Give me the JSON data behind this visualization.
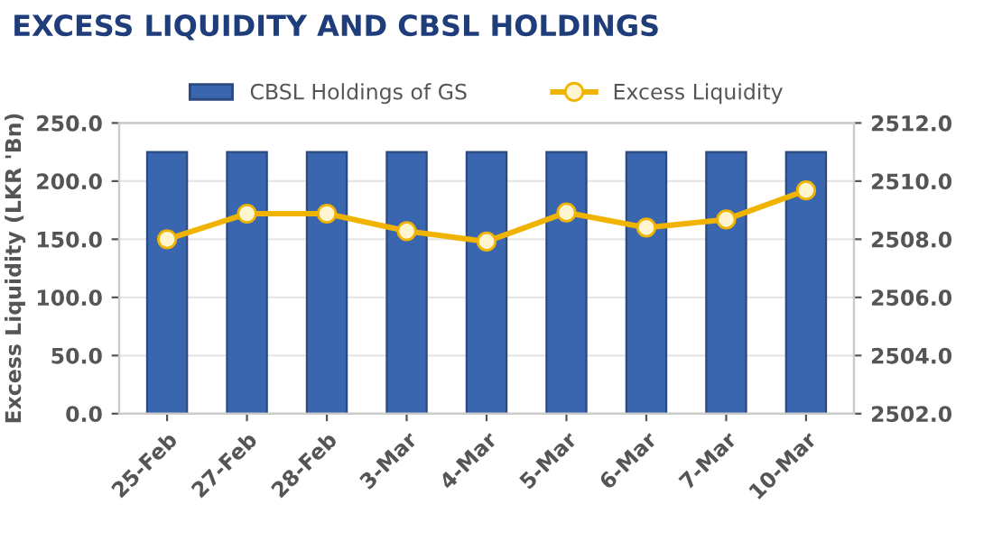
{
  "chart_data": {
    "type": "bar",
    "title": "EXCESS LIQUIDITY AND CBSL HOLDINGS",
    "ylabel": "Excess Liquidity (LKR 'Bn)",
    "categories": [
      "25-Feb",
      "27-Feb",
      "28-Feb",
      "3-Mar",
      "4-Mar",
      "5-Mar",
      "6-Mar",
      "7-Mar",
      "10-Mar"
    ],
    "series": [
      {
        "name": "CBSL Holdings of GS",
        "axis": "y2",
        "color": "#3a66b0",
        "values": [
          2511.0,
          2511.0,
          2511.0,
          2511.0,
          2511.0,
          2511.0,
          2511.0,
          2511.0,
          2511.0
        ]
      },
      {
        "name": "Excess Liquidity",
        "type": "line",
        "axis": "y",
        "color": "#f0b400",
        "values": [
          150,
          172,
          172,
          157,
          148,
          173,
          160,
          167,
          192
        ]
      }
    ],
    "ylim": [
      0,
      250
    ],
    "yticks": [
      {
        "value": 0,
        "label": "0.0"
      },
      {
        "value": 50,
        "label": "50.0"
      },
      {
        "value": 100,
        "label": "100.0"
      },
      {
        "value": 150,
        "label": "150.0"
      },
      {
        "value": 200,
        "label": "200.0"
      },
      {
        "value": 250,
        "label": "250.0"
      }
    ],
    "y2lim": [
      2502,
      2512
    ],
    "y2ticks": [
      {
        "value": 2502,
        "label": "2502.0"
      },
      {
        "value": 2504,
        "label": "2504.0"
      },
      {
        "value": 2506,
        "label": "2506.0"
      },
      {
        "value": 2508,
        "label": "2508.0"
      },
      {
        "value": 2510,
        "label": "2510.0"
      },
      {
        "value": 2512,
        "label": "2512.0"
      }
    ],
    "grid": "y",
    "legend": "top",
    "marker": "circle"
  }
}
